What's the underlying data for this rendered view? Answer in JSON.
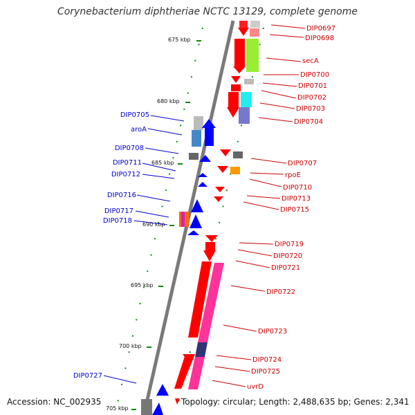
{
  "title": "Corynebacterium diphtheriae NCTC 13129, complete genome",
  "footer": {
    "accession": "Accession: NC_002935",
    "summary": "Topology: circular; Length: 2,488,635 bp; Genes: 2,341"
  },
  "colors": {
    "backbone": "#7a7a7a",
    "forward_label": "#0000cc",
    "reverse_label": "#cc0000",
    "tick": "#0a8a0a",
    "forward_gene": "#0000ff",
    "reverse_gene": "#ff0000"
  },
  "kbp_ticks": [
    "675 kbp",
    "680 kbp",
    "685 kbp",
    "690 kbp",
    "695 kbp",
    "700 kbp",
    "705 kbp"
  ],
  "left_labels": [
    "DIP0705",
    "aroA",
    "DIP0708",
    "DIP0711",
    "DIP0712",
    "DIP0716",
    "DIP0717",
    "DIP0718",
    "DIP0727"
  ],
  "right_labels": [
    "DIP0697",
    "DIP0698",
    "secA",
    "DIP0700",
    "DIP0701",
    "DIP0702",
    "DIP0703",
    "DIP0704",
    "DIP0707",
    "rpoE",
    "DIP0710",
    "DIP0713",
    "DIP0715",
    "DIP0719",
    "DIP0720",
    "DIP0721",
    "DIP0722",
    "DIP0723",
    "DIP0724",
    "DIP0725",
    "uvrD"
  ]
}
